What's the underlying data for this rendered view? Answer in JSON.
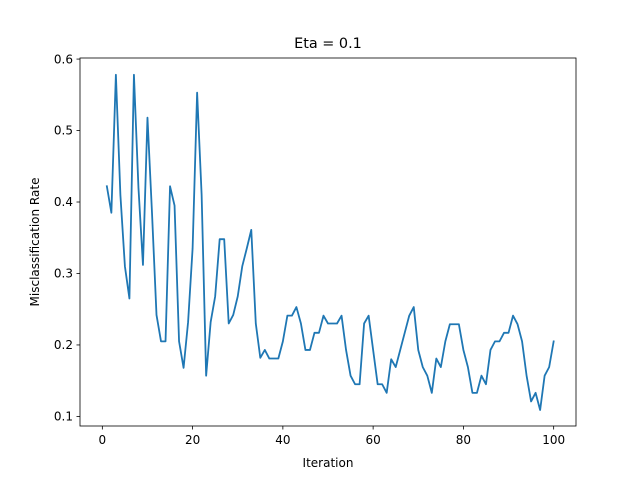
{
  "chart_data": {
    "type": "line",
    "title": "Eta = 0.1",
    "xlabel": "Iteration",
    "ylabel": "Misclassification Rate",
    "xlim": [
      -4.95,
      104.95
    ],
    "ylim": [
      0.0866,
      0.6015
    ],
    "xticks": [
      {
        "value": 0,
        "label": "0"
      },
      {
        "value": 20,
        "label": "20"
      },
      {
        "value": 40,
        "label": "40"
      },
      {
        "value": 60,
        "label": "60"
      },
      {
        "value": 80,
        "label": "80"
      },
      {
        "value": 100,
        "label": "100"
      }
    ],
    "yticks": [
      {
        "value": 0.1,
        "label": "0.1"
      },
      {
        "value": 0.2,
        "label": "0.2"
      },
      {
        "value": 0.3,
        "label": "0.3"
      },
      {
        "value": 0.4,
        "label": "0.4"
      },
      {
        "value": 0.5,
        "label": "0.5"
      },
      {
        "value": 0.6,
        "label": "0.6"
      }
    ],
    "grid": false,
    "line_color": "#1f77b4",
    "x": [
      1,
      2,
      3,
      4,
      5,
      6,
      7,
      8,
      9,
      10,
      11,
      12,
      13,
      14,
      15,
      16,
      17,
      18,
      19,
      20,
      21,
      22,
      23,
      24,
      25,
      26,
      27,
      28,
      29,
      30,
      31,
      32,
      33,
      34,
      35,
      36,
      37,
      38,
      39,
      40,
      41,
      42,
      43,
      44,
      45,
      46,
      47,
      48,
      49,
      50,
      51,
      52,
      53,
      54,
      55,
      56,
      57,
      58,
      59,
      60,
      61,
      62,
      63,
      64,
      65,
      66,
      67,
      68,
      69,
      70,
      71,
      72,
      73,
      74,
      75,
      76,
      77,
      78,
      79,
      80,
      81,
      82,
      83,
      84,
      85,
      86,
      87,
      88,
      89,
      90,
      91,
      92,
      93,
      94,
      95,
      96,
      97,
      98,
      99,
      100
    ],
    "y": [
      0.422,
      0.385,
      0.578,
      0.41,
      0.31,
      0.265,
      0.578,
      0.42,
      0.312,
      0.518,
      0.385,
      0.242,
      0.205,
      0.205,
      0.422,
      0.395,
      0.205,
      0.168,
      0.232,
      0.335,
      0.553,
      0.41,
      0.157,
      0.232,
      0.268,
      0.348,
      0.348,
      0.23,
      0.242,
      0.268,
      0.31,
      0.335,
      0.361,
      0.23,
      0.182,
      0.193,
      0.181,
      0.181,
      0.181,
      0.205,
      0.241,
      0.241,
      0.253,
      0.23,
      0.193,
      0.193,
      0.217,
      0.217,
      0.241,
      0.23,
      0.23,
      0.23,
      0.241,
      0.193,
      0.157,
      0.145,
      0.145,
      0.23,
      0.241,
      0.193,
      0.145,
      0.145,
      0.133,
      0.18,
      0.169,
      0.193,
      0.217,
      0.241,
      0.253,
      0.193,
      0.169,
      0.157,
      0.133,
      0.181,
      0.169,
      0.205,
      0.229,
      0.229,
      0.229,
      0.193,
      0.169,
      0.133,
      0.133,
      0.157,
      0.145,
      0.193,
      0.205,
      0.205,
      0.217,
      0.217,
      0.241,
      0.229,
      0.205,
      0.157,
      0.121,
      0.133,
      0.109,
      0.157,
      0.169,
      0.205
    ]
  }
}
